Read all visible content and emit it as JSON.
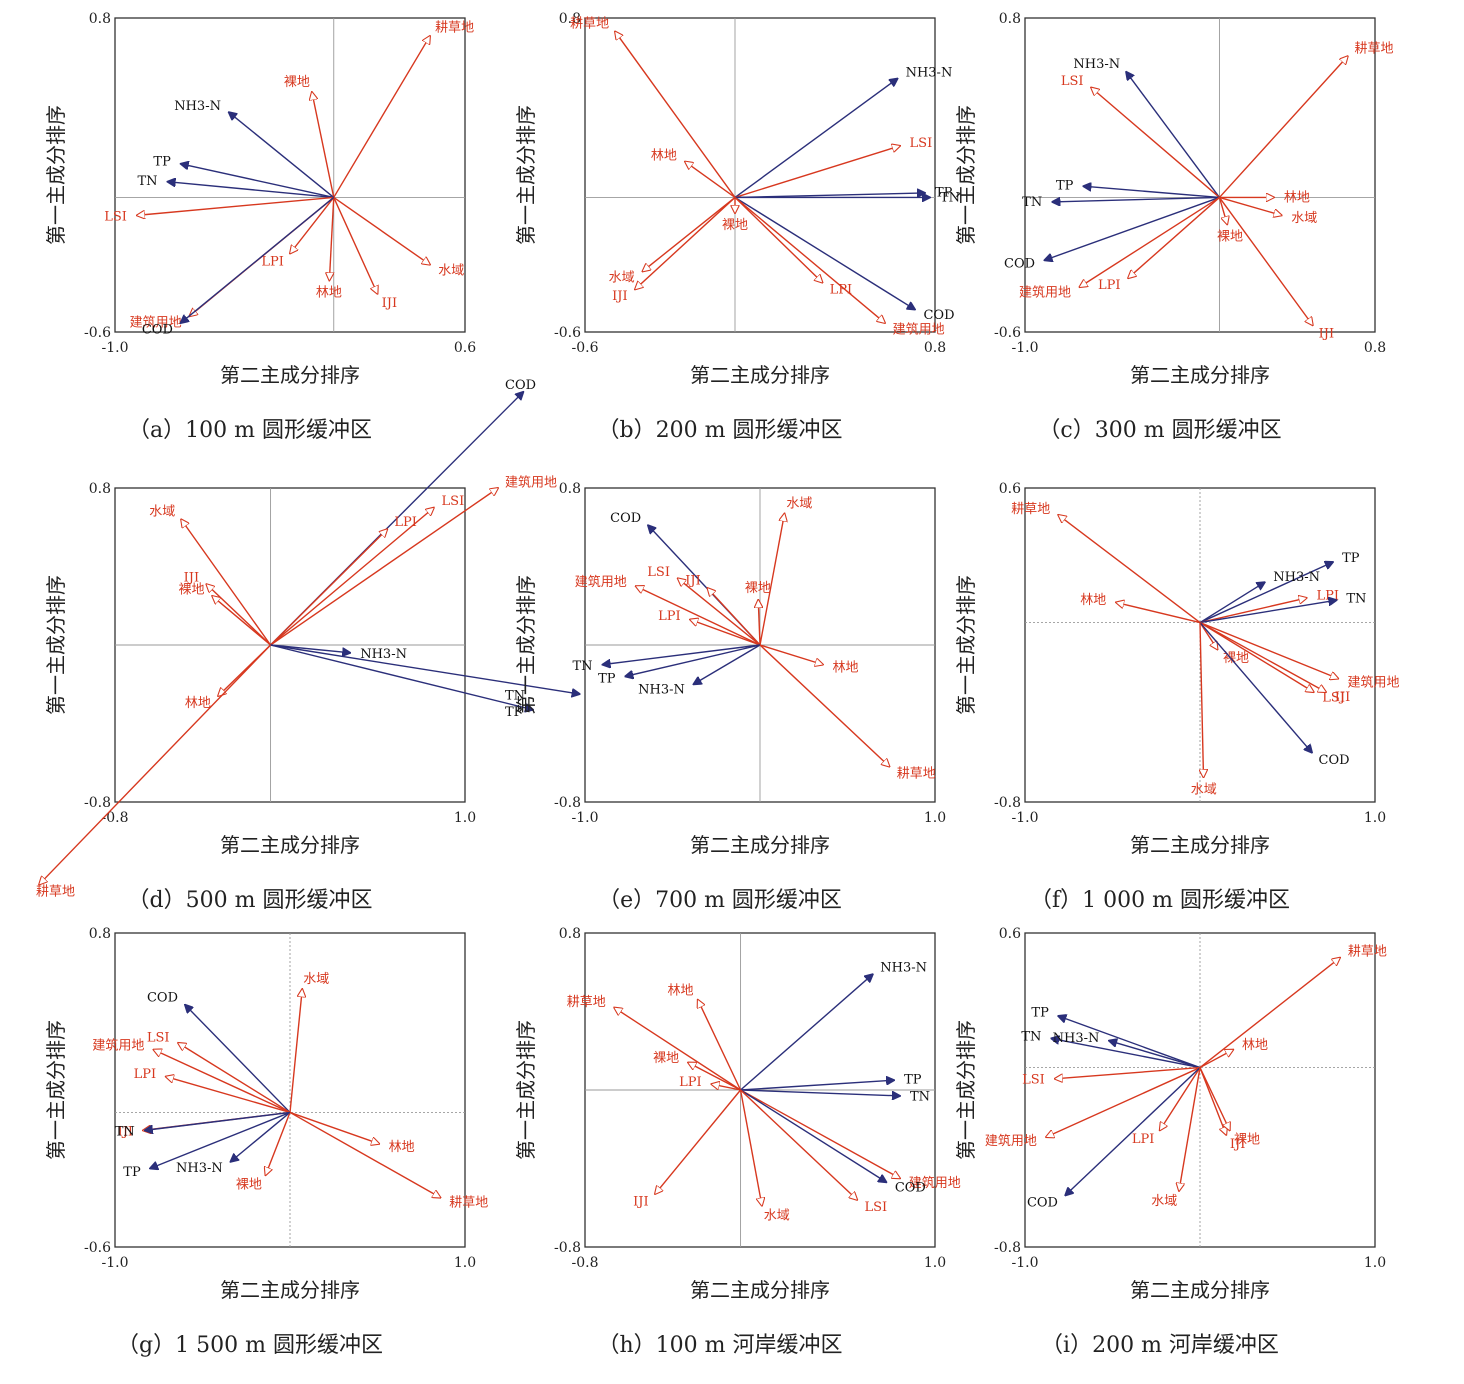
{
  "colors": {
    "landscape": "#d7381f",
    "water_quality": "#2b2f7a",
    "axis": "#333333",
    "zero": "#9a9a9a"
  },
  "charts": [
    {
      "id": "a",
      "caption": "（a）100 m 圆形缓冲区",
      "chart_data": {
        "type": "biplot",
        "xlabel": "第二主成分排序",
        "ylabel": "第一主成分排序",
        "xlim": [
          -1.0,
          0.6
        ],
        "ylim": [
          -0.6,
          0.8
        ],
        "x_ticks": [
          "-1.0",
          "0.6"
        ],
        "y_ticks": [
          "0.8",
          "-0.6"
        ],
        "dashed_zero": false,
        "vectors": [
          {
            "label": "耕草地",
            "x": 0.44,
            "y": 0.72,
            "group": "landscape"
          },
          {
            "label": "裸地",
            "x": -0.1,
            "y": 0.47,
            "group": "landscape"
          },
          {
            "label": "NH3-N",
            "x": -0.48,
            "y": 0.38,
            "group": "water_quality"
          },
          {
            "label": "TP",
            "x": -0.7,
            "y": 0.15,
            "group": "water_quality"
          },
          {
            "label": "TN",
            "x": -0.76,
            "y": 0.07,
            "group": "water_quality"
          },
          {
            "label": "LSI",
            "x": -0.9,
            "y": -0.08,
            "group": "landscape"
          },
          {
            "label": "LPI",
            "x": -0.2,
            "y": -0.25,
            "group": "landscape"
          },
          {
            "label": "林地",
            "x": -0.02,
            "y": -0.37,
            "group": "landscape"
          },
          {
            "label": "IJI",
            "x": 0.2,
            "y": -0.43,
            "group": "landscape"
          },
          {
            "label": "水域",
            "x": 0.44,
            "y": -0.3,
            "group": "landscape"
          },
          {
            "label": "建筑用地",
            "x": -0.66,
            "y": -0.53,
            "group": "landscape"
          },
          {
            "label": "COD",
            "x": -0.7,
            "y": -0.56,
            "group": "water_quality"
          }
        ]
      }
    },
    {
      "id": "b",
      "caption": "（b）200 m 圆形缓冲区",
      "chart_data": {
        "type": "biplot",
        "xlabel": "第二主成分排序",
        "ylabel": "第一主成分排序",
        "xlim": [
          -0.6,
          0.8
        ],
        "ylim": [
          -0.6,
          0.8
        ],
        "x_ticks": [
          "-0.6",
          "0.8"
        ],
        "y_ticks": [
          "0.8",
          "-0.6"
        ],
        "dashed_zero": false,
        "vectors": [
          {
            "label": "耕草地",
            "x": -0.48,
            "y": 0.74,
            "group": "landscape"
          },
          {
            "label": "NH3-N",
            "x": 0.65,
            "y": 0.53,
            "group": "water_quality"
          },
          {
            "label": "LSI",
            "x": 0.66,
            "y": 0.23,
            "group": "landscape"
          },
          {
            "label": "林地",
            "x": -0.2,
            "y": 0.16,
            "group": "landscape"
          },
          {
            "label": "TP",
            "x": 0.76,
            "y": 0.02,
            "group": "water_quality"
          },
          {
            "label": "TN",
            "x": 0.78,
            "y": 0.0,
            "group": "water_quality"
          },
          {
            "label": "裸地",
            "x": 0.0,
            "y": -0.07,
            "group": "landscape"
          },
          {
            "label": "水域",
            "x": -0.37,
            "y": -0.33,
            "group": "landscape"
          },
          {
            "label": "IJI",
            "x": -0.4,
            "y": -0.41,
            "group": "landscape"
          },
          {
            "label": "LPI",
            "x": 0.35,
            "y": -0.38,
            "group": "landscape"
          },
          {
            "label": "COD",
            "x": 0.72,
            "y": -0.5,
            "group": "water_quality"
          },
          {
            "label": "建筑用地",
            "x": 0.6,
            "y": -0.56,
            "group": "landscape"
          }
        ]
      }
    },
    {
      "id": "c",
      "caption": "（c）300 m 圆形缓冲区",
      "chart_data": {
        "type": "biplot",
        "xlabel": "第二主成分排序",
        "ylabel": "第一主成分排序",
        "xlim": [
          -1.0,
          0.8
        ],
        "ylim": [
          -0.6,
          0.8
        ],
        "x_ticks": [
          "-1.0",
          "0.8"
        ],
        "y_ticks": [
          "0.8",
          "-0.6"
        ],
        "dashed_zero": false,
        "vectors": [
          {
            "label": "耕草地",
            "x": 0.66,
            "y": 0.63,
            "group": "landscape"
          },
          {
            "label": "NH3-N",
            "x": -0.48,
            "y": 0.56,
            "group": "water_quality"
          },
          {
            "label": "LSI",
            "x": -0.66,
            "y": 0.49,
            "group": "landscape"
          },
          {
            "label": "TP",
            "x": -0.7,
            "y": 0.05,
            "group": "water_quality"
          },
          {
            "label": "TN",
            "x": -0.86,
            "y": -0.02,
            "group": "water_quality"
          },
          {
            "label": "林地",
            "x": 0.28,
            "y": 0.0,
            "group": "landscape"
          },
          {
            "label": "水域",
            "x": 0.32,
            "y": -0.08,
            "group": "landscape"
          },
          {
            "label": "裸地",
            "x": 0.04,
            "y": -0.12,
            "group": "landscape"
          },
          {
            "label": "COD",
            "x": -0.9,
            "y": -0.28,
            "group": "water_quality"
          },
          {
            "label": "LPI",
            "x": -0.47,
            "y": -0.36,
            "group": "landscape"
          },
          {
            "label": "建筑用地",
            "x": -0.72,
            "y": -0.4,
            "group": "landscape"
          },
          {
            "label": "IJI",
            "x": 0.48,
            "y": -0.57,
            "group": "landscape"
          }
        ]
      }
    },
    {
      "id": "d",
      "caption": "（d）500 m 圆形缓冲区",
      "chart_data": {
        "type": "biplot",
        "xlabel": "第二主成分排序",
        "ylabel": "第一主成分排序",
        "xlim": [
          -0.8,
          1.0
        ],
        "ylim": [
          -0.8,
          0.8
        ],
        "x_ticks": [
          "-0.8",
          "1.0"
        ],
        "y_ticks": [
          "0.8",
          "-0.8"
        ],
        "dashed_zero": false,
        "vectors": [
          {
            "label": "水域",
            "x": -0.46,
            "y": 0.64,
            "group": "landscape"
          },
          {
            "label": "COD",
            "x": 1.3,
            "y": 1.29,
            "group": "water_quality"
          },
          {
            "label": "IJI",
            "x": -0.33,
            "y": 0.31,
            "group": "landscape"
          },
          {
            "label": "裸地",
            "x": -0.3,
            "y": 0.25,
            "group": "landscape"
          },
          {
            "label": "LPI",
            "x": 0.6,
            "y": 0.59,
            "group": "landscape"
          },
          {
            "label": "LSI",
            "x": 0.84,
            "y": 0.7,
            "group": "landscape"
          },
          {
            "label": "建筑用地",
            "x": 1.17,
            "y": 0.8,
            "group": "landscape"
          },
          {
            "label": "NH3-N",
            "x": 0.41,
            "y": -0.04,
            "group": "water_quality"
          },
          {
            "label": "林地",
            "x": -0.27,
            "y": -0.26,
            "group": "landscape"
          },
          {
            "label": "TN",
            "x": 1.59,
            "y": -0.25,
            "group": "water_quality"
          },
          {
            "label": "TP",
            "x": 1.35,
            "y": -0.33,
            "group": "water_quality"
          },
          {
            "label": "耕草地",
            "x": -1.19,
            "y": -1.22,
            "group": "landscape"
          }
        ]
      }
    },
    {
      "id": "e",
      "caption": "（e）700 m 圆形缓冲区",
      "chart_data": {
        "type": "biplot",
        "xlabel": "第二主成分排序",
        "ylabel": "第一主成分排序",
        "xlim": [
          -1.0,
          1.0
        ],
        "ylim": [
          -0.8,
          0.8
        ],
        "x_ticks": [
          "-1.0",
          "1.0"
        ],
        "y_ticks": [
          "0.8",
          "-0.8"
        ],
        "dashed_zero": false,
        "vectors": [
          {
            "label": "COD",
            "x": -0.64,
            "y": 0.61,
            "group": "water_quality"
          },
          {
            "label": "水域",
            "x": 0.14,
            "y": 0.67,
            "group": "landscape"
          },
          {
            "label": "LSI",
            "x": -0.47,
            "y": 0.34,
            "group": "landscape"
          },
          {
            "label": "IJI",
            "x": -0.3,
            "y": 0.29,
            "group": "landscape"
          },
          {
            "label": "建筑用地",
            "x": -0.71,
            "y": 0.3,
            "group": "landscape"
          },
          {
            "label": "裸地",
            "x": -0.01,
            "y": 0.23,
            "group": "landscape"
          },
          {
            "label": "LPI",
            "x": -0.4,
            "y": 0.13,
            "group": "landscape"
          },
          {
            "label": "林地",
            "x": 0.36,
            "y": -0.1,
            "group": "landscape"
          },
          {
            "label": "TN",
            "x": -0.9,
            "y": -0.1,
            "group": "water_quality"
          },
          {
            "label": "TP",
            "x": -0.77,
            "y": -0.16,
            "group": "water_quality"
          },
          {
            "label": "NH3-N",
            "x": -0.38,
            "y": -0.2,
            "group": "water_quality"
          },
          {
            "label": "耕草地",
            "x": 0.74,
            "y": -0.62,
            "group": "landscape"
          }
        ]
      }
    },
    {
      "id": "f",
      "caption": "（f）1 000 m 圆形缓冲区",
      "chart_data": {
        "type": "biplot",
        "xlabel": "第二主成分排序",
        "ylabel": "第一主成分排序",
        "xlim": [
          -1.0,
          1.0
        ],
        "ylim": [
          -0.8,
          0.6
        ],
        "x_ticks": [
          "-1.0",
          "1.0"
        ],
        "y_ticks": [
          "0.6",
          "-0.8"
        ],
        "dashed_zero": true,
        "vectors": [
          {
            "label": "耕草地",
            "x": -0.81,
            "y": 0.48,
            "group": "landscape"
          },
          {
            "label": "TP",
            "x": 0.76,
            "y": 0.27,
            "group": "water_quality"
          },
          {
            "label": "NH3-N",
            "x": 0.37,
            "y": 0.18,
            "group": "water_quality"
          },
          {
            "label": "林地",
            "x": -0.48,
            "y": 0.09,
            "group": "landscape"
          },
          {
            "label": "LPI",
            "x": 0.61,
            "y": 0.11,
            "group": "landscape"
          },
          {
            "label": "TN",
            "x": 0.78,
            "y": 0.1,
            "group": "water_quality"
          },
          {
            "label": "裸地",
            "x": 0.1,
            "y": -0.12,
            "group": "landscape"
          },
          {
            "label": "建筑用地",
            "x": 0.79,
            "y": -0.25,
            "group": "landscape"
          },
          {
            "label": "LSI",
            "x": 0.65,
            "y": -0.31,
            "group": "landscape"
          },
          {
            "label": "IJI",
            "x": 0.72,
            "y": -0.31,
            "group": "landscape"
          },
          {
            "label": "COD",
            "x": 0.64,
            "y": -0.58,
            "group": "water_quality"
          },
          {
            "label": "水域",
            "x": 0.02,
            "y": -0.69,
            "group": "landscape"
          }
        ]
      }
    },
    {
      "id": "g",
      "caption": "（g）1 500 m 圆形缓冲区",
      "chart_data": {
        "type": "biplot",
        "xlabel": "第二主成分排序",
        "ylabel": "第一主成分排序",
        "xlim": [
          -1.0,
          1.0
        ],
        "ylim": [
          -0.6,
          0.8
        ],
        "x_ticks": [
          "-1.0",
          "1.0"
        ],
        "y_ticks": [
          "0.8",
          "-0.6"
        ],
        "dashed_zero": true,
        "vectors": [
          {
            "label": "COD",
            "x": -0.6,
            "y": 0.48,
            "group": "water_quality"
          },
          {
            "label": "水域",
            "x": 0.07,
            "y": 0.55,
            "group": "landscape"
          },
          {
            "label": "LSI",
            "x": -0.64,
            "y": 0.31,
            "group": "landscape"
          },
          {
            "label": "建筑用地",
            "x": -0.78,
            "y": 0.28,
            "group": "landscape"
          },
          {
            "label": "LPI",
            "x": -0.71,
            "y": 0.16,
            "group": "landscape"
          },
          {
            "label": "IJI",
            "x": -0.84,
            "y": -0.08,
            "group": "landscape"
          },
          {
            "label": "TN",
            "x": -0.83,
            "y": -0.08,
            "group": "water_quality"
          },
          {
            "label": "林地",
            "x": 0.51,
            "y": -0.14,
            "group": "landscape"
          },
          {
            "label": "NH3-N",
            "x": -0.34,
            "y": -0.22,
            "group": "water_quality"
          },
          {
            "label": "裸地",
            "x": -0.14,
            "y": -0.28,
            "group": "landscape"
          },
          {
            "label": "TP",
            "x": -0.8,
            "y": -0.25,
            "group": "water_quality"
          },
          {
            "label": "耕草地",
            "x": 0.86,
            "y": -0.38,
            "group": "landscape"
          }
        ]
      }
    },
    {
      "id": "h",
      "caption": "（h）100 m 河岸缓冲区",
      "chart_data": {
        "type": "biplot",
        "xlabel": "第二主成分排序",
        "ylabel": "第一主成分排序",
        "xlim": [
          -0.8,
          1.0
        ],
        "ylim": [
          -0.8,
          0.8
        ],
        "x_ticks": [
          "-0.8",
          "1.0"
        ],
        "y_ticks": [
          "0.8",
          "-0.8"
        ],
        "dashed_zero": false,
        "vectors": [
          {
            "label": "NH3-N",
            "x": 0.68,
            "y": 0.59,
            "group": "water_quality"
          },
          {
            "label": "耕草地",
            "x": -0.65,
            "y": 0.42,
            "group": "landscape"
          },
          {
            "label": "林地",
            "x": -0.22,
            "y": 0.46,
            "group": "landscape"
          },
          {
            "label": "裸地",
            "x": -0.27,
            "y": 0.14,
            "group": "landscape"
          },
          {
            "label": "LPI",
            "x": -0.15,
            "y": 0.03,
            "group": "landscape"
          },
          {
            "label": "TP",
            "x": 0.79,
            "y": 0.05,
            "group": "water_quality"
          },
          {
            "label": "TN",
            "x": 0.82,
            "y": -0.03,
            "group": "water_quality"
          },
          {
            "label": "建筑用地",
            "x": 0.82,
            "y": -0.45,
            "group": "landscape"
          },
          {
            "label": "COD",
            "x": 0.75,
            "y": -0.47,
            "group": "water_quality"
          },
          {
            "label": "IJI",
            "x": -0.44,
            "y": -0.53,
            "group": "landscape"
          },
          {
            "label": "水域",
            "x": 0.11,
            "y": -0.59,
            "group": "landscape"
          },
          {
            "label": "LSI",
            "x": 0.6,
            "y": -0.56,
            "group": "landscape"
          }
        ]
      }
    },
    {
      "id": "i",
      "caption": "（i）200 m 河岸缓冲区",
      "chart_data": {
        "type": "biplot",
        "xlabel": "第二主成分排序",
        "ylabel": "第一主成分排序",
        "xlim": [
          -1.0,
          1.0
        ],
        "ylim": [
          -0.8,
          0.6
        ],
        "x_ticks": [
          "-1.0",
          "1.0"
        ],
        "y_ticks": [
          "0.6",
          "-0.8"
        ],
        "dashed_zero": true,
        "vectors": [
          {
            "label": "耕草地",
            "x": 0.8,
            "y": 0.49,
            "group": "landscape"
          },
          {
            "label": "TP",
            "x": -0.81,
            "y": 0.23,
            "group": "water_quality"
          },
          {
            "label": "TN",
            "x": -0.85,
            "y": 0.13,
            "group": "water_quality"
          },
          {
            "label": "NH3-N",
            "x": -0.52,
            "y": 0.12,
            "group": "water_quality"
          },
          {
            "label": "林地",
            "x": 0.19,
            "y": 0.08,
            "group": "landscape"
          },
          {
            "label": "LSI",
            "x": -0.83,
            "y": -0.05,
            "group": "landscape"
          },
          {
            "label": "建筑用地",
            "x": -0.88,
            "y": -0.31,
            "group": "landscape"
          },
          {
            "label": "LPI",
            "x": -0.23,
            "y": -0.28,
            "group": "landscape"
          },
          {
            "label": "IJI",
            "x": 0.15,
            "y": -0.3,
            "group": "landscape"
          },
          {
            "label": "裸地",
            "x": 0.17,
            "y": -0.28,
            "group": "landscape"
          },
          {
            "label": "COD",
            "x": -0.77,
            "y": -0.57,
            "group": "water_quality"
          },
          {
            "label": "水域",
            "x": -0.12,
            "y": -0.55,
            "group": "landscape"
          }
        ]
      }
    }
  ]
}
